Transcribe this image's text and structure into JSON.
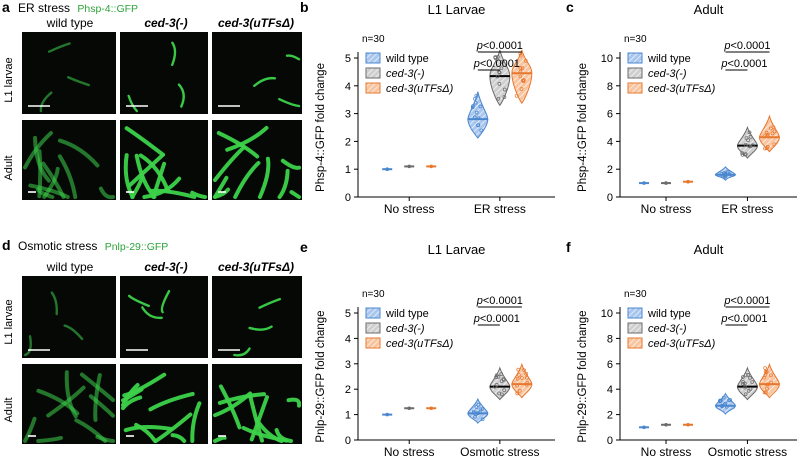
{
  "images": {
    "a": {
      "panel_label": "a",
      "title_left": "ER stress",
      "title_reporter": "Phsp-4::GFP",
      "columns": [
        "wild type",
        "ced-3(-)",
        "ced-3(uTFsΔ)"
      ],
      "rows": [
        "L1 larvae",
        "Adult"
      ],
      "fluorescence_color": "#3cd24a"
    },
    "d": {
      "panel_label": "d",
      "title_left": "Osmotic stress",
      "title_reporter": "Pnlp-29::GFP",
      "columns": [
        "wild type",
        "ced-3(-)",
        "ced-3(uTFsΔ)"
      ],
      "rows": [
        "L1 larvae",
        "Adult"
      ],
      "fluorescence_color": "#3cd24a"
    }
  },
  "legend_entries": [
    "wild type",
    "ced-3(-)",
    "ced-3(uTFsΔ)"
  ],
  "colors": {
    "wild_type": "#4a87cf",
    "ced3": "#6b6b6b",
    "uTFs": "#e8772e"
  },
  "chart_data": [
    {
      "panel": "b",
      "type": "violin",
      "title": "L1 Larvae",
      "ylabel": "Phsp-4::GFP fold change",
      "ylim": [
        0,
        5
      ],
      "yticks": [
        0,
        1,
        2,
        3,
        4,
        5
      ],
      "categories": [
        "No stress",
        "ER stress"
      ],
      "n_label": "n=30",
      "series": [
        {
          "name": "wild type",
          "values": [
            1.0,
            2.8
          ]
        },
        {
          "name": "ced-3(-)",
          "values": [
            1.1,
            4.35
          ]
        },
        {
          "name": "ced-3(uTFsΔ)",
          "values": [
            1.1,
            4.45
          ]
        }
      ],
      "significance": [
        "p<0.0001",
        "p<0.0001"
      ],
      "legend": "top-left"
    },
    {
      "panel": "c",
      "type": "violin",
      "title": "Adult",
      "ylabel": "Phsp-4::GFP fold change",
      "ylim": [
        0,
        10
      ],
      "yticks": [
        0,
        2,
        4,
        6,
        8,
        10
      ],
      "categories": [
        "No stress",
        "ER stress"
      ],
      "n_label": "n=30",
      "series": [
        {
          "name": "wild type",
          "values": [
            1.0,
            1.6
          ]
        },
        {
          "name": "ced-3(-)",
          "values": [
            1.0,
            3.7
          ]
        },
        {
          "name": "ced-3(uTFsΔ)",
          "values": [
            1.1,
            4.3
          ]
        }
      ],
      "significance": [
        "p<0.0001",
        "p<0.0001"
      ],
      "legend": "top-left"
    },
    {
      "panel": "e",
      "type": "violin",
      "title": "L1 Larvae",
      "ylabel": "Pnlp-29::GFP fold change",
      "ylim": [
        0,
        5
      ],
      "yticks": [
        0,
        1,
        2,
        3,
        4,
        5
      ],
      "categories": [
        "No stress",
        "Osmotic stress"
      ],
      "n_label": "n=30",
      "series": [
        {
          "name": "wild type",
          "values": [
            1.0,
            1.05
          ]
        },
        {
          "name": "ced-3(-)",
          "values": [
            1.25,
            2.1
          ]
        },
        {
          "name": "ced-3(uTFsΔ)",
          "values": [
            1.25,
            2.2
          ]
        }
      ],
      "significance": [
        "p<0.0001",
        "p<0.0001"
      ],
      "legend": "top-left"
    },
    {
      "panel": "f",
      "type": "violin",
      "title": "Adult",
      "ylabel": "Pnlp-29::GFP fold change",
      "ylim": [
        0,
        10
      ],
      "yticks": [
        0,
        2,
        4,
        6,
        8,
        10
      ],
      "categories": [
        "No stress",
        "Osmotic stress"
      ],
      "n_label": "n=30",
      "series": [
        {
          "name": "wild type",
          "values": [
            1.0,
            2.7
          ]
        },
        {
          "name": "ced-3(-)",
          "values": [
            1.2,
            4.2
          ]
        },
        {
          "name": "ced-3(uTFsΔ)",
          "values": [
            1.2,
            4.4
          ]
        }
      ],
      "significance": [
        "p<0.0001",
        "p<0.0001"
      ],
      "legend": "top-left"
    }
  ]
}
